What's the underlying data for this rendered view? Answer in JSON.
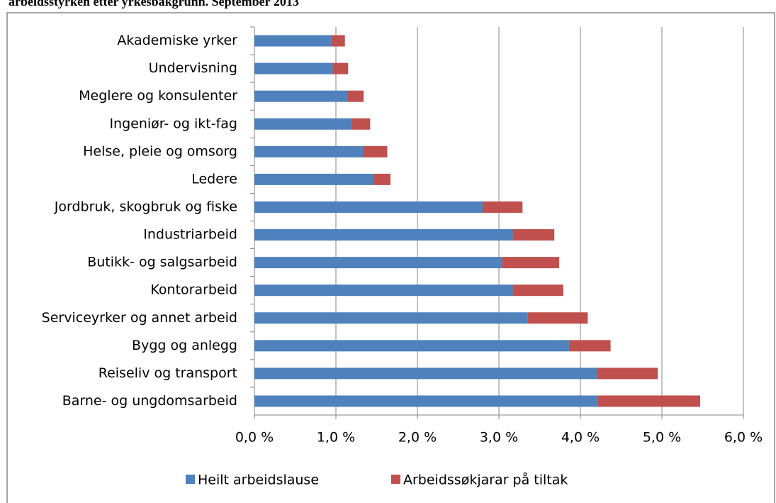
{
  "chart_data": {
    "type": "stacked-bar-horizontal",
    "title": "arbeidsstyrken etter yrkesbakgrunn. September 2013",
    "categories": [
      "Akademiske yrker",
      "Undervisning",
      "Meglere og konsulenter",
      "Ingeniør- og ikt-fag",
      "Helse, pleie og omsorg",
      "Ledere",
      "Jordbruk, skogbruk og fiske",
      "Industriarbeid",
      "Butikk- og salgsarbeid",
      "Kontorarbeid",
      "Serviceyrker og annet arbeid",
      "Bygg og anlegg",
      "Reiseliv og transport",
      "Barne- og ungdomsarbeid"
    ],
    "series": [
      {
        "name": "Heilt arbeidslause",
        "color": "#4f81bd",
        "values": [
          0.94,
          0.96,
          1.14,
          1.19,
          1.33,
          1.47,
          2.8,
          3.17,
          3.04,
          3.17,
          3.35,
          3.86,
          4.2,
          4.21
        ]
      },
      {
        "name": "Arbeidssøkjarar på tiltak",
        "color": "#c0504d",
        "values": [
          0.17,
          0.19,
          0.2,
          0.23,
          0.3,
          0.2,
          0.49,
          0.51,
          0.7,
          0.62,
          0.74,
          0.51,
          0.75,
          1.26
        ]
      }
    ],
    "xlim": [
      0,
      6
    ],
    "xticks": [
      {
        "value": 0,
        "label": "0,0 %"
      },
      {
        "value": 1,
        "label": "1,0 %"
      },
      {
        "value": 2,
        "label": "2,0 %"
      },
      {
        "value": 3,
        "label": "3,0 %"
      },
      {
        "value": 4,
        "label": "4,0 %"
      },
      {
        "value": 5,
        "label": "5,0 %"
      },
      {
        "value": 6,
        "label": "6,0 %"
      }
    ],
    "grid": true,
    "legend": "bottom"
  }
}
